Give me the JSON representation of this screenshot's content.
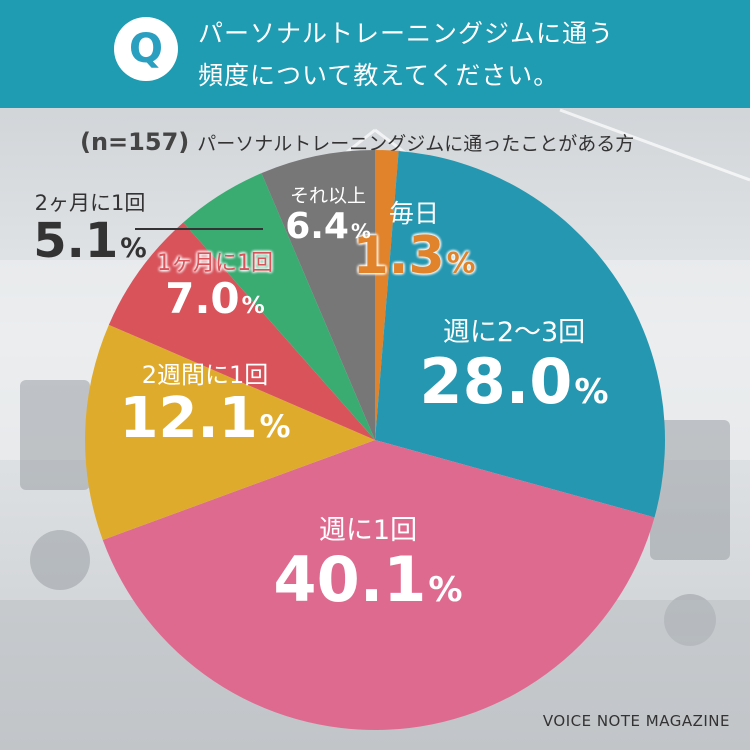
{
  "question": {
    "badge": "Q",
    "line1": "パーソナルトレーニングジムに通う",
    "line2": "頻度について教えてください。"
  },
  "sample": {
    "n": "(n=157)",
    "description": "パーソナルトレーニングジムに通ったことがある方"
  },
  "brand": "VOICE NOTE MAGAZINE",
  "percent_sign": "%",
  "chart_data": {
    "type": "pie",
    "unit": "%",
    "start": "12 o'clock, clockwise",
    "slices": [
      {
        "label": "毎日",
        "value": 1.3,
        "display": "1.3",
        "color": "#e0832b"
      },
      {
        "label": "週に2〜3回",
        "value": 28.0,
        "display": "28.0",
        "color": "#2597b0"
      },
      {
        "label": "週に1回",
        "value": 40.1,
        "display": "40.1",
        "color": "#df6a90"
      },
      {
        "label": "2週間に1回",
        "value": 12.1,
        "display": "12.1",
        "color": "#dfab2d"
      },
      {
        "label": "1ヶ月に1回",
        "value": 7.0,
        "display": "7.0",
        "color": "#d9535b"
      },
      {
        "label": "2ヶ月に1回",
        "value": 5.1,
        "display": "5.1",
        "color": "#3aac72"
      },
      {
        "label": "それ以上",
        "value": 6.4,
        "display": "6.4",
        "color": "#777777"
      }
    ]
  }
}
